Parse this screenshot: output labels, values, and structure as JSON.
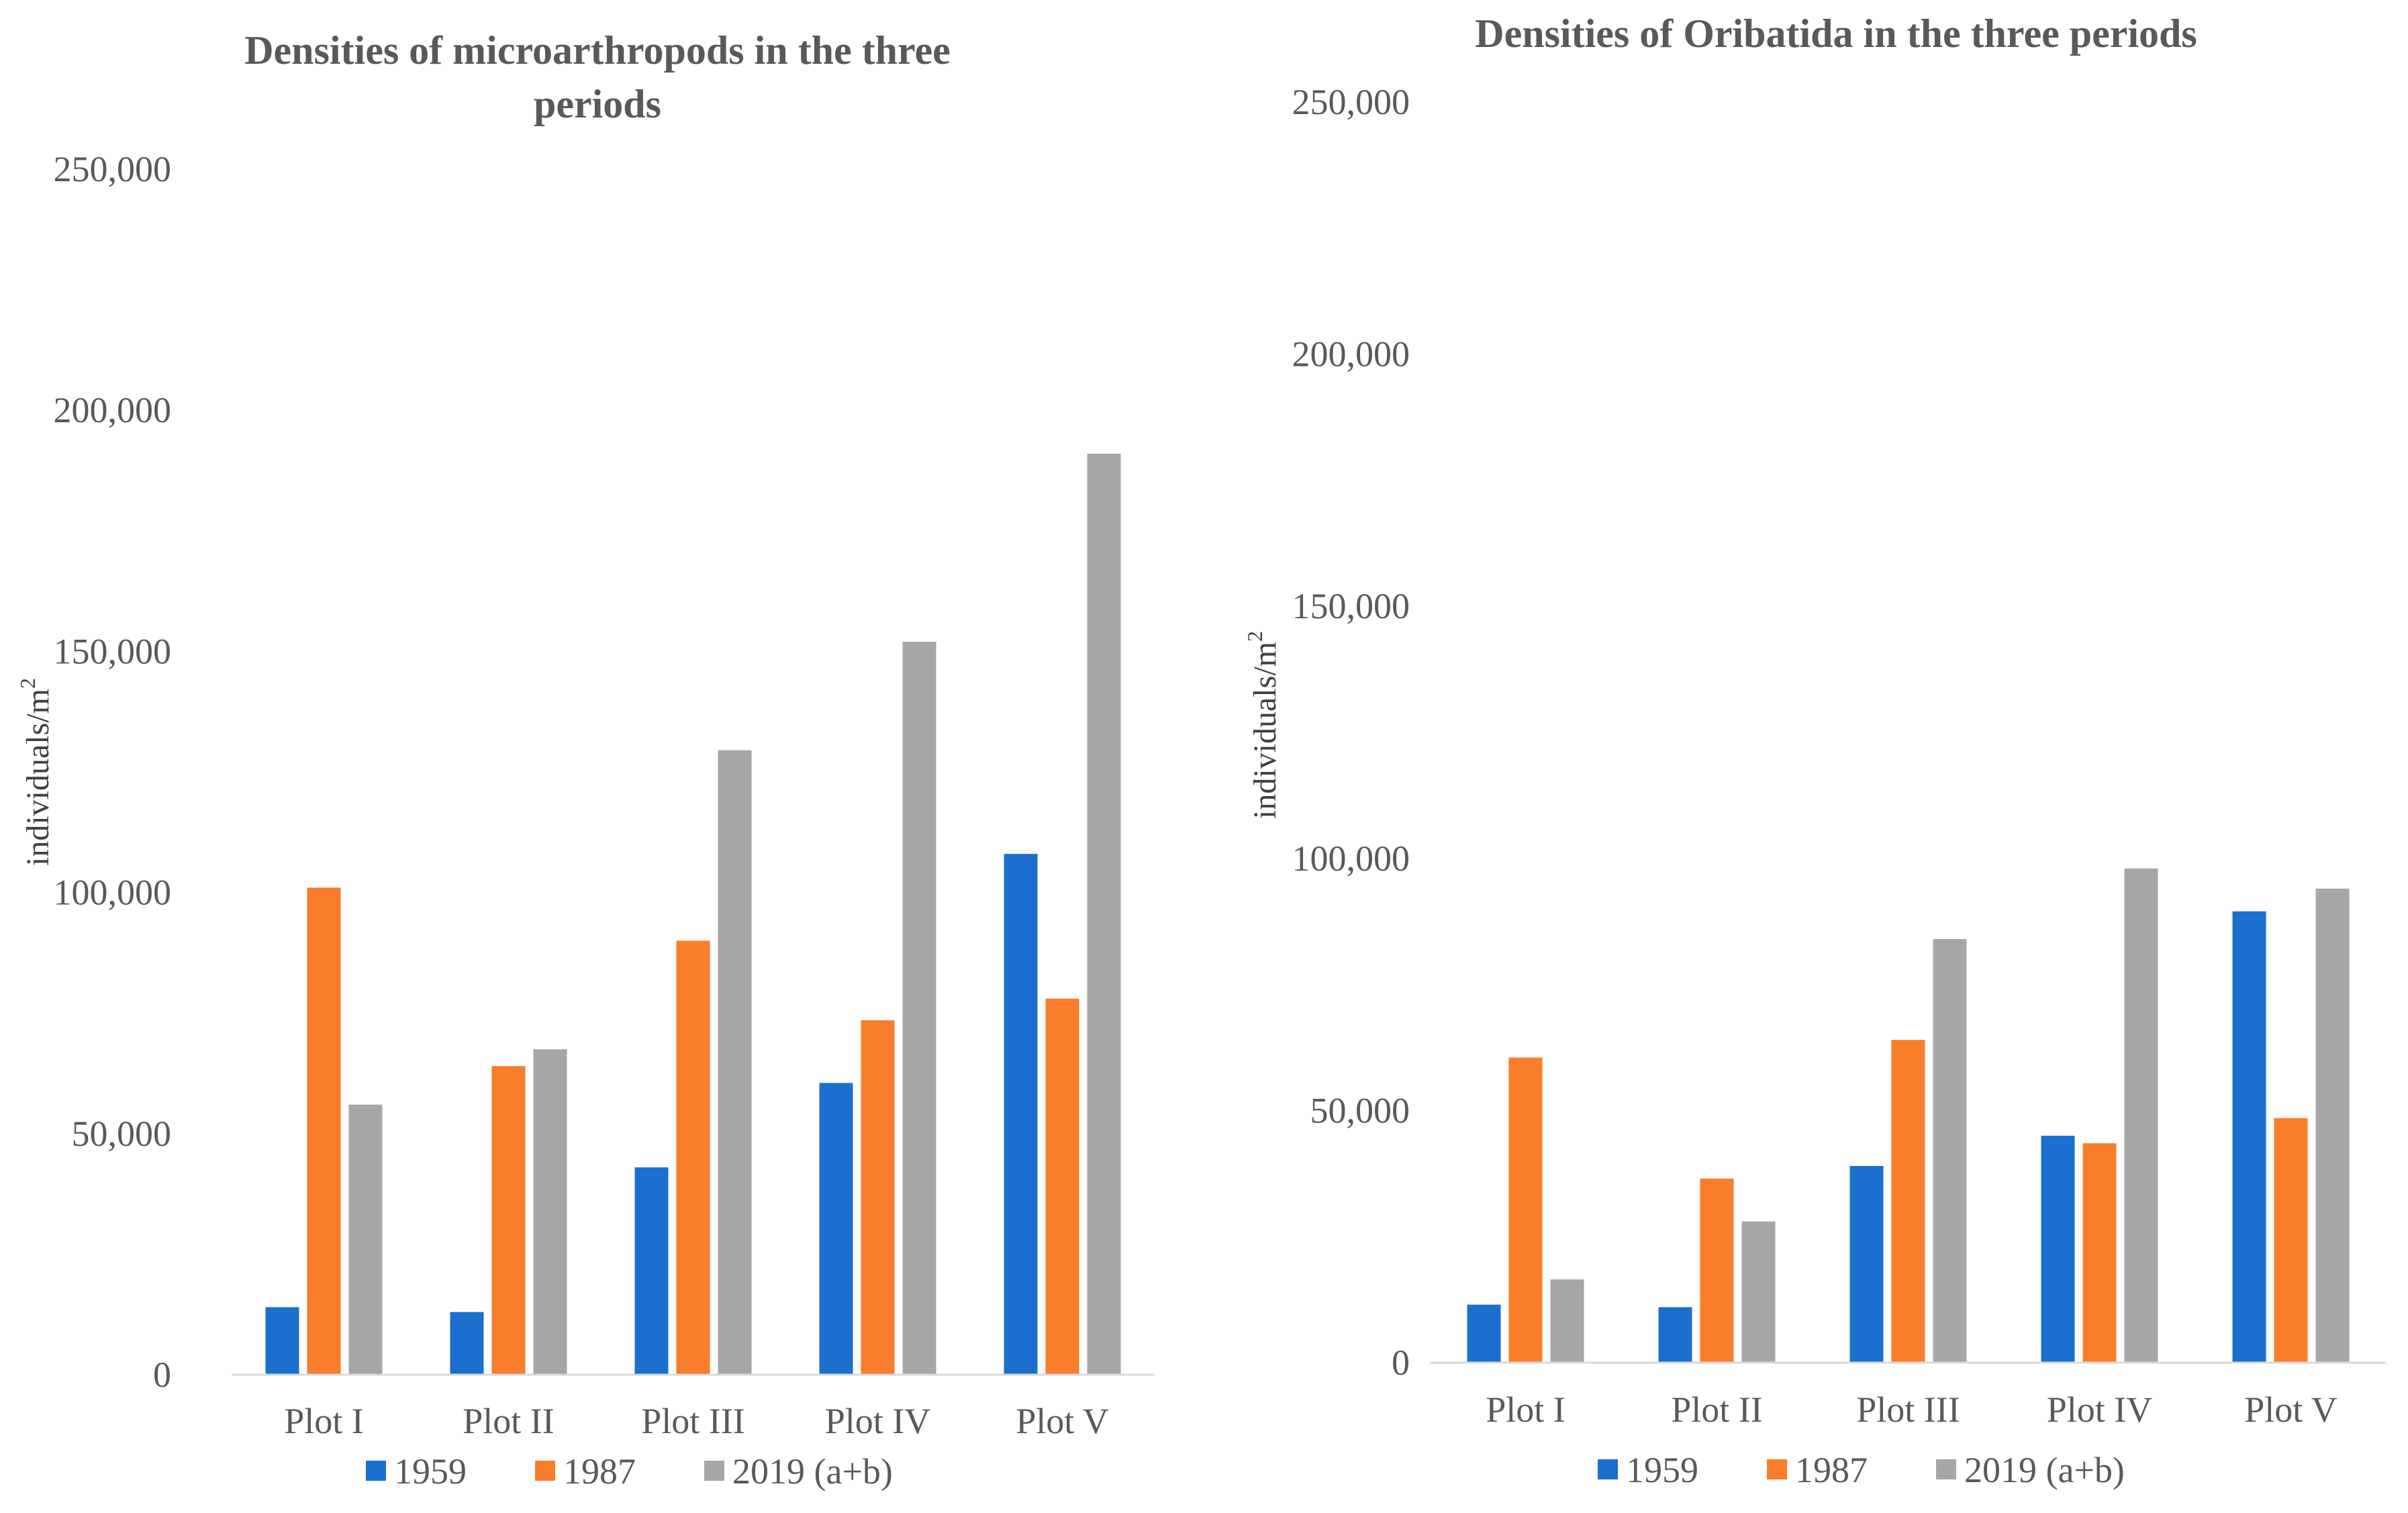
{
  "chart_data": [
    {
      "type": "bar",
      "title": "Densities of microarthropods in the three periods",
      "title_lines": [
        "Densities of microarthropods in the three",
        "periods"
      ],
      "ylabel": "individuals/m",
      "ylabel_superscript": "2",
      "categories": [
        "Plot I",
        "Plot II",
        "Plot III",
        "Plot IV",
        "Plot V"
      ],
      "ylim": [
        0,
        250000
      ],
      "yticks": [
        0,
        50000,
        100000,
        150000,
        200000,
        250000
      ],
      "ytick_labels": [
        "0",
        "50,000",
        "100,000",
        "150,000",
        "200,000",
        "250,000"
      ],
      "grid": false,
      "legend_position": "bottom",
      "series": [
        {
          "name": "1959",
          "color": "#1a6fcf",
          "values": [
            14000,
            13000,
            43000,
            60500,
            108000
          ]
        },
        {
          "name": "1987",
          "color": "#f97d2a",
          "values": [
            101000,
            64000,
            90000,
            73500,
            78000
          ]
        },
        {
          "name": "2019 (a+b)",
          "color": "#a6a6a6",
          "values": [
            56000,
            67500,
            129500,
            152000,
            191000
          ]
        }
      ]
    },
    {
      "type": "bar",
      "title": "Densities of Oribatida in the three periods",
      "title_lines": [
        "Densities of Oribatida in the three periods"
      ],
      "ylabel": "individuals/m",
      "ylabel_superscript": "2",
      "categories": [
        "Plot I",
        "Plot II",
        "Plot III",
        "Plot IV",
        "Plot V"
      ],
      "ylim": [
        0,
        250000
      ],
      "yticks": [
        0,
        50000,
        100000,
        150000,
        200000,
        250000
      ],
      "ytick_labels": [
        "0",
        "50,000",
        "100,000",
        "150,000",
        "200,000",
        "250,000"
      ],
      "grid": false,
      "legend_position": "bottom",
      "series": [
        {
          "name": "1959",
          "color": "#1a6fcf",
          "values": [
            11500,
            11000,
            39000,
            45000,
            89500
          ]
        },
        {
          "name": "1987",
          "color": "#f97d2a",
          "values": [
            60500,
            36500,
            64000,
            43500,
            48500
          ]
        },
        {
          "name": "2019 (a+b)",
          "color": "#a6a6a6",
          "values": [
            16500,
            28000,
            84000,
            98000,
            94000
          ]
        }
      ]
    }
  ]
}
